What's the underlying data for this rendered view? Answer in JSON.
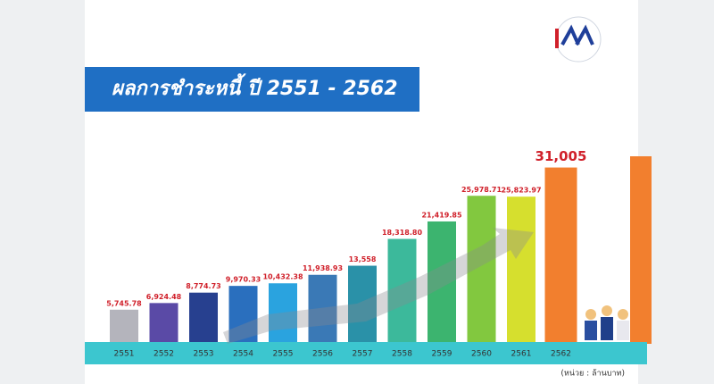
{
  "chart_data": {
    "type": "bar",
    "title": "ผลการชำระหนี้ ปี 2551 - 2562",
    "unit_note": "(หน่วย : ล้านบาท)",
    "categories": [
      "2551",
      "2552",
      "2553",
      "2554",
      "2555",
      "2556",
      "2557",
      "2558",
      "2559",
      "2560",
      "2561",
      "2562"
    ],
    "values": [
      5745.78,
      6924.48,
      8774.73,
      9970.33,
      10432.38,
      11938.93,
      13558,
      18318.8,
      21419.85,
      25978.71,
      25823.97,
      31005
    ],
    "value_labels": [
      "5,745.78",
      "6,924.48",
      "8,774.73",
      "9,970.33",
      "10,432.38",
      "11,938.93",
      "13,558",
      "18,318.80",
      "21,419.85",
      "25,978.71",
      "25,823.97",
      "31,005"
    ],
    "colors": [
      "#b4b4bc",
      "#5a4aa6",
      "#27408f",
      "#2a6fbe",
      "#2aa3df",
      "#3a79b6",
      "#2a91a8",
      "#3cb99b",
      "#3cb46f",
      "#82c83f",
      "#d6df2e",
      "#f27f2e"
    ],
    "ylim": [
      0,
      33000
    ]
  }
}
